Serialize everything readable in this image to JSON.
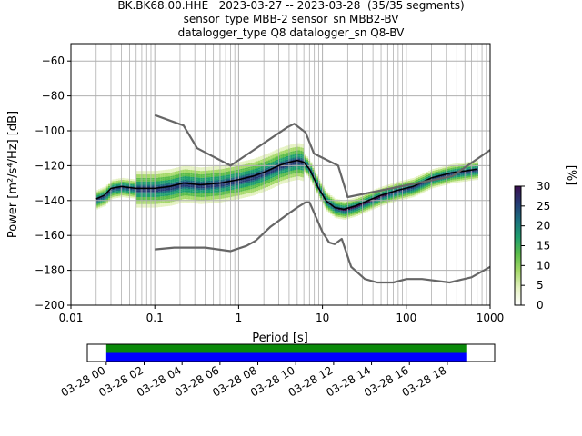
{
  "title_lines": [
    "BK.BK68.00.HHE   2023-03-27 -- 2023-03-28  (35/35 segments)",
    "sensor_type MBB-2 sensor_sn MBB2-BV",
    "datalogger_type Q8 datalogger_sn Q8-BV"
  ],
  "chart_data": [
    {
      "type": "heatmap",
      "xlabel": "Period [s]",
      "ylabel": "Power [m²/s⁴/Hz] [dB]",
      "xscale": "log",
      "xlim": [
        0.01,
        1000
      ],
      "ylim": [
        -200,
        -50
      ],
      "x_ticks": [
        {
          "v": 0.01,
          "label": "0.01"
        },
        {
          "v": 0.1,
          "label": "0.1"
        },
        {
          "v": 1,
          "label": "1"
        },
        {
          "v": 10,
          "label": "10"
        },
        {
          "v": 100,
          "label": "100"
        },
        {
          "v": 1000,
          "label": "1000"
        }
      ],
      "y_ticks": [
        {
          "v": -60,
          "label": "−60"
        },
        {
          "v": -80,
          "label": "−80"
        },
        {
          "v": -100,
          "label": "−100"
        },
        {
          "v": -120,
          "label": "−120"
        },
        {
          "v": -140,
          "label": "−140"
        },
        {
          "v": -160,
          "label": "−160"
        },
        {
          "v": -180,
          "label": "−180"
        },
        {
          "v": -200,
          "label": "−200"
        }
      ],
      "grid": true,
      "colorbar": {
        "label": "[%]",
        "range": [
          0,
          30
        ],
        "ticks": [
          {
            "v": 0,
            "label": "0"
          },
          {
            "v": 5,
            "label": "5"
          },
          {
            "v": 10,
            "label": "10"
          },
          {
            "v": 15,
            "label": "15"
          },
          {
            "v": 20,
            "label": "20"
          },
          {
            "v": 25,
            "label": "25"
          },
          {
            "v": 30,
            "label": "30"
          }
        ],
        "colors": [
          "#ffffff",
          "#e5f2c2",
          "#a6d96a",
          "#5cbd4a",
          "#1f9e6e",
          "#1b6f7e",
          "#253a73",
          "#3b0f4f"
        ]
      },
      "series": [
        {
          "kind": "mean",
          "color": "#000000",
          "points": [
            [
              0.02,
              -139
            ],
            [
              0.025,
              -137
            ],
            [
              0.03,
              -133
            ],
            [
              0.04,
              -132
            ],
            [
              0.06,
              -133
            ],
            [
              0.1,
              -133
            ],
            [
              0.15,
              -132
            ],
            [
              0.22,
              -130
            ],
            [
              0.35,
              -131
            ],
            [
              0.6,
              -130
            ],
            [
              1,
              -128
            ],
            [
              1.5,
              -126
            ],
            [
              2.2,
              -123
            ],
            [
              3,
              -120
            ],
            [
              4,
              -118
            ],
            [
              5,
              -117
            ],
            [
              6,
              -118
            ],
            [
              7,
              -122
            ],
            [
              9,
              -133
            ],
            [
              11,
              -140
            ],
            [
              14,
              -144
            ],
            [
              18,
              -145
            ],
            [
              25,
              -143
            ],
            [
              35,
              -140
            ],
            [
              50,
              -137
            ],
            [
              80,
              -134
            ],
            [
              120,
              -132
            ],
            [
              200,
              -127
            ],
            [
              350,
              -124
            ],
            [
              500,
              -123
            ],
            [
              700,
              -122
            ]
          ]
        },
        {
          "kind": "nhnm",
          "color": "#666666",
          "points": [
            [
              0.1,
              -91
            ],
            [
              0.22,
              -97
            ],
            [
              0.32,
              -110
            ],
            [
              0.8,
              -120
            ],
            [
              3.8,
              -98
            ],
            [
              4.6,
              -96
            ],
            [
              6.3,
              -101
            ],
            [
              7.9,
              -113
            ],
            [
              15.4,
              -120
            ],
            [
              20,
              -138
            ],
            [
              354,
              -126
            ],
            [
              1000,
              -111
            ]
          ]
        },
        {
          "kind": "nlnm",
          "color": "#666666",
          "points": [
            [
              0.1,
              -168
            ],
            [
              0.17,
              -167
            ],
            [
              0.4,
              -167
            ],
            [
              0.8,
              -169
            ],
            [
              1.24,
              -166
            ],
            [
              1.6,
              -163
            ],
            [
              2.4,
              -155
            ],
            [
              3.8,
              -148
            ],
            [
              5,
              -144
            ],
            [
              6.3,
              -141
            ],
            [
              7,
              -141
            ],
            [
              10,
              -158
            ],
            [
              12,
              -164
            ],
            [
              14,
              -165
            ],
            [
              17,
              -162
            ],
            [
              22,
              -178
            ],
            [
              32,
              -185
            ],
            [
              45,
              -187
            ],
            [
              70,
              -187
            ],
            [
              101,
              -185
            ],
            [
              154,
              -185
            ],
            [
              328,
              -187
            ],
            [
              600,
              -184
            ],
            [
              1000,
              -178
            ]
          ]
        }
      ]
    },
    {
      "type": "timeline",
      "tick_labels": [
        "03-28 00",
        "03-28 02",
        "03-28 04",
        "03-28 06",
        "03-28 08",
        "03-28 10",
        "03-28 12",
        "03-28 14",
        "03-28 16",
        "03-28 18"
      ],
      "tick_hours": [
        0,
        2,
        4,
        6,
        8,
        10,
        12,
        14,
        16,
        18
      ],
      "range_hours": [
        -1,
        20.5
      ],
      "coverage_hours": [
        0,
        19
      ],
      "colors": {
        "used": "#0a8a0a",
        "data": "#0000ff"
      }
    }
  ]
}
